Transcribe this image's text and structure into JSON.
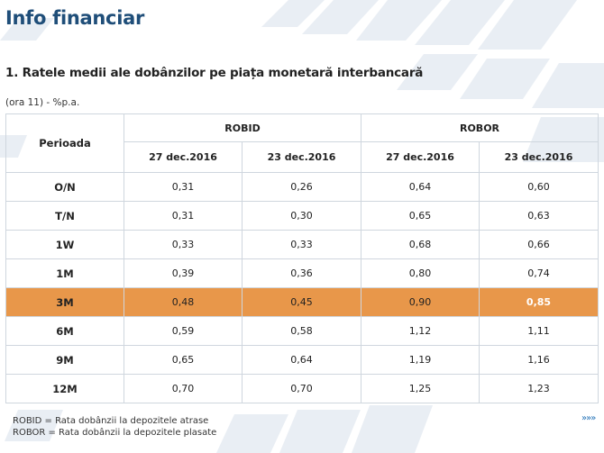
{
  "page": {
    "title": "Info financiar",
    "section_title": "1. Ratele medii ale dobânzilor pe piața monetară interbancară",
    "note": "(ora 11) - %p.a."
  },
  "table": {
    "period_header": "Perioada",
    "groups": [
      "ROBID",
      "ROBOR"
    ],
    "dates": [
      "27 dec.2016",
      "23 dec.2016",
      "27 dec.2016",
      "23 dec.2016"
    ],
    "rows": [
      {
        "period": "O/N",
        "values": [
          "0,31",
          "0,26",
          "0,64",
          "0,60"
        ]
      },
      {
        "period": "T/N",
        "values": [
          "0,31",
          "0,30",
          "0,65",
          "0,63"
        ]
      },
      {
        "period": "1W",
        "values": [
          "0,33",
          "0,33",
          "0,68",
          "0,66"
        ]
      },
      {
        "period": "1M",
        "values": [
          "0,39",
          "0,36",
          "0,80",
          "0,74"
        ]
      },
      {
        "period": "3M",
        "values": [
          "0,48",
          "0,45",
          "0,90",
          "0,85"
        ]
      },
      {
        "period": "6M",
        "values": [
          "0,59",
          "0,58",
          "1,12",
          "1,11"
        ]
      },
      {
        "period": "9M",
        "values": [
          "0,65",
          "0,64",
          "1,19",
          "1,16"
        ]
      },
      {
        "period": "12M",
        "values": [
          "0,70",
          "0,70",
          "1,25",
          "1,23"
        ]
      }
    ],
    "highlight_color": "#e8974a"
  },
  "legend": {
    "robid": "ROBID = Rata dobânzii la depozitele atrase",
    "robor": "ROBOR = Rata dobânzii la depozitele plasate"
  },
  "more_link": "»»»",
  "colors": {
    "title": "#1f4e79",
    "border": "#cfd6de"
  }
}
